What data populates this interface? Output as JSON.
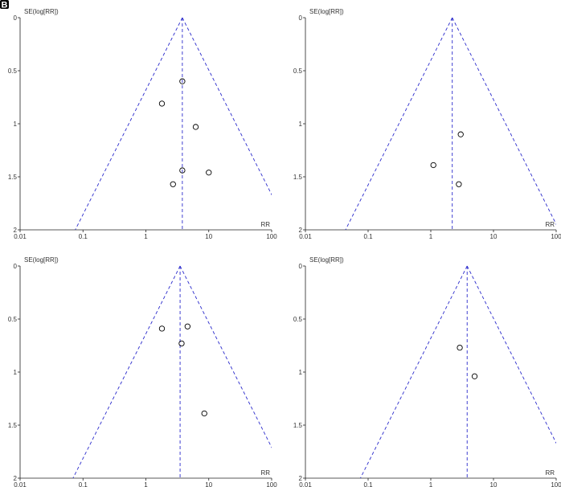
{
  "panel_label": "B",
  "colors": {
    "funnel": "#2b2bcc",
    "axis": "#222222",
    "points": "#000000",
    "label_bg": "#000000"
  },
  "chart_data": [
    {
      "type": "scatter",
      "subtype": "funnel",
      "xscale": "log",
      "xlim": [
        0.01,
        100
      ],
      "ylim": [
        0,
        2
      ],
      "yaxis_inverted": true,
      "xlabel": "RR",
      "ylabel": "SE(log[RR])",
      "xticks": [
        "0.01",
        "0.1",
        "1",
        "10",
        "100"
      ],
      "yticks": [
        "0",
        "0.5",
        "1",
        "1.5",
        "2"
      ],
      "pooled_rr": 3.8,
      "points": [
        {
          "x": 3.8,
          "y": 0.6
        },
        {
          "x": 1.8,
          "y": 0.81
        },
        {
          "x": 6.2,
          "y": 1.03
        },
        {
          "x": 3.8,
          "y": 1.44
        },
        {
          "x": 10.0,
          "y": 1.46
        },
        {
          "x": 2.7,
          "y": 1.57
        }
      ]
    },
    {
      "type": "scatter",
      "subtype": "funnel",
      "xscale": "log",
      "xlim": [
        0.01,
        100
      ],
      "ylim": [
        0,
        2
      ],
      "yaxis_inverted": true,
      "xlabel": "RR",
      "ylabel": "SE(log[RR])",
      "xticks": [
        "0.01",
        "0.1",
        "1",
        "10",
        "100"
      ],
      "yticks": [
        "0",
        "0.5",
        "1",
        "1.5",
        "2"
      ],
      "pooled_rr": 2.2,
      "points": [
        {
          "x": 3.0,
          "y": 1.1
        },
        {
          "x": 1.1,
          "y": 1.39
        },
        {
          "x": 2.8,
          "y": 1.57
        }
      ]
    },
    {
      "type": "scatter",
      "subtype": "funnel",
      "xscale": "log",
      "xlim": [
        0.01,
        100
      ],
      "ylim": [
        0,
        2
      ],
      "yaxis_inverted": true,
      "xlabel": "RR",
      "ylabel": "SE(log[RR])",
      "xticks": [
        "0.01",
        "0.1",
        "1",
        "10",
        "100"
      ],
      "yticks": [
        "0",
        "0.5",
        "1",
        "1.5",
        "2"
      ],
      "pooled_rr": 3.5,
      "points": [
        {
          "x": 1.8,
          "y": 0.59
        },
        {
          "x": 4.6,
          "y": 0.57
        },
        {
          "x": 3.7,
          "y": 0.73
        },
        {
          "x": 8.5,
          "y": 1.39
        }
      ]
    },
    {
      "type": "scatter",
      "subtype": "funnel",
      "xscale": "log",
      "xlim": [
        0.01,
        100
      ],
      "ylim": [
        0,
        2
      ],
      "yaxis_inverted": true,
      "xlabel": "RR",
      "ylabel": "SE(log[RR])",
      "xticks": [
        "0.01",
        "0.1",
        "1",
        "10",
        "100"
      ],
      "yticks": [
        "0",
        "0.5",
        "1",
        "1.5",
        "2"
      ],
      "pooled_rr": 3.8,
      "points": [
        {
          "x": 2.9,
          "y": 0.77
        },
        {
          "x": 5.0,
          "y": 1.04
        }
      ]
    }
  ]
}
